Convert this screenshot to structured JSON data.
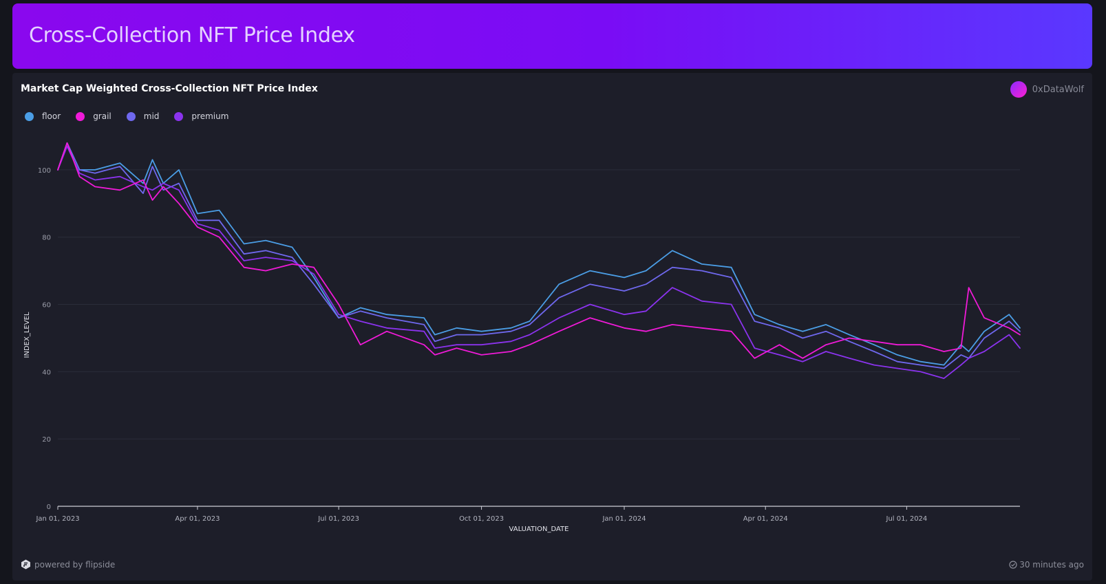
{
  "header": {
    "title": "Cross-Collection NFT Price Index"
  },
  "panel": {
    "title": "Market Cap Weighted Cross-Collection NFT Price Index",
    "author": "0xDataWolf"
  },
  "footer": {
    "powered_by": "powered by flipside",
    "updated": "30 minutes ago"
  },
  "colors": {
    "floor": "#4b9ee6",
    "grail": "#f01ad8",
    "mid": "#6f68ee",
    "premium": "#8b33ee",
    "background": "#1d1e29"
  },
  "chart_data": {
    "type": "line",
    "xlabel": "VALUATION_DATE",
    "ylabel": "INDEX_LEVEL",
    "xlim": [
      "2023-01-01",
      "2024-09-12"
    ],
    "ylim": [
      0,
      110
    ],
    "yticks": [
      0,
      20,
      40,
      60,
      80,
      100
    ],
    "xtick_labels": [
      "Jan 01, 2023",
      "Apr 01, 2023",
      "Jul 01, 2023",
      "Oct 01, 2023",
      "Jan 01, 2024",
      "Apr 01, 2024",
      "Jul 01, 2024"
    ],
    "xtick_dates": [
      "2023-01-01",
      "2023-04-01",
      "2023-07-01",
      "2023-10-01",
      "2024-01-01",
      "2024-04-01",
      "2024-07-01"
    ],
    "grid": true,
    "legend": "top-left",
    "x": [
      "2023-01-01",
      "2023-01-07",
      "2023-01-15",
      "2023-01-25",
      "2023-02-10",
      "2023-02-25",
      "2023-03-03",
      "2023-03-10",
      "2023-03-20",
      "2023-04-01",
      "2023-04-15",
      "2023-05-01",
      "2023-05-15",
      "2023-06-01",
      "2023-06-15",
      "2023-07-01",
      "2023-07-15",
      "2023-08-01",
      "2023-08-25",
      "2023-09-01",
      "2023-09-15",
      "2023-10-01",
      "2023-10-20",
      "2023-11-01",
      "2023-11-20",
      "2023-12-10",
      "2024-01-01",
      "2024-01-15",
      "2024-02-01",
      "2024-02-20",
      "2024-03-10",
      "2024-03-25",
      "2024-04-10",
      "2024-04-25",
      "2024-05-10",
      "2024-05-25",
      "2024-06-10",
      "2024-06-25",
      "2024-07-10",
      "2024-07-25",
      "2024-08-05",
      "2024-08-10",
      "2024-08-20",
      "2024-09-05",
      "2024-09-12"
    ],
    "series": [
      {
        "name": "floor",
        "values": [
          100,
          108,
          100,
          100,
          102,
          96,
          103,
          96,
          100,
          87,
          88,
          78,
          79,
          77,
          68,
          56,
          59,
          57,
          56,
          51,
          53,
          52,
          53,
          55,
          66,
          70,
          68,
          70,
          76,
          72,
          71,
          57,
          54,
          52,
          54,
          51,
          48,
          45,
          43,
          42,
          48,
          46,
          52,
          57,
          53
        ]
      },
      {
        "name": "grail",
        "values": [
          100,
          108,
          98,
          95,
          94,
          97,
          91,
          95,
          90,
          83,
          80,
          71,
          70,
          72,
          71,
          60,
          48,
          52,
          48,
          45,
          47,
          45,
          46,
          48,
          52,
          56,
          53,
          52,
          54,
          53,
          52,
          44,
          48,
          44,
          48,
          50,
          49,
          48,
          48,
          46,
          47,
          65,
          56,
          53,
          51
        ]
      },
      {
        "name": "mid",
        "values": [
          100,
          108,
          100,
          99,
          101,
          93,
          101,
          94,
          96,
          85,
          85,
          75,
          76,
          74,
          66,
          56,
          58,
          56,
          54,
          49,
          51,
          51,
          52,
          54,
          62,
          66,
          64,
          66,
          71,
          70,
          68,
          55,
          53,
          50,
          52,
          49,
          46,
          43,
          42,
          41,
          45,
          44,
          50,
          55,
          52
        ]
      },
      {
        "name": "premium",
        "values": [
          100,
          107,
          99,
          97,
          98,
          95,
          94,
          96,
          94,
          84,
          82,
          73,
          74,
          73,
          69,
          57,
          55,
          53,
          52,
          47,
          48,
          48,
          49,
          51,
          56,
          60,
          57,
          58,
          65,
          61,
          60,
          47,
          45,
          43,
          46,
          44,
          42,
          41,
          40,
          38,
          42,
          44,
          46,
          51,
          47
        ]
      }
    ]
  }
}
